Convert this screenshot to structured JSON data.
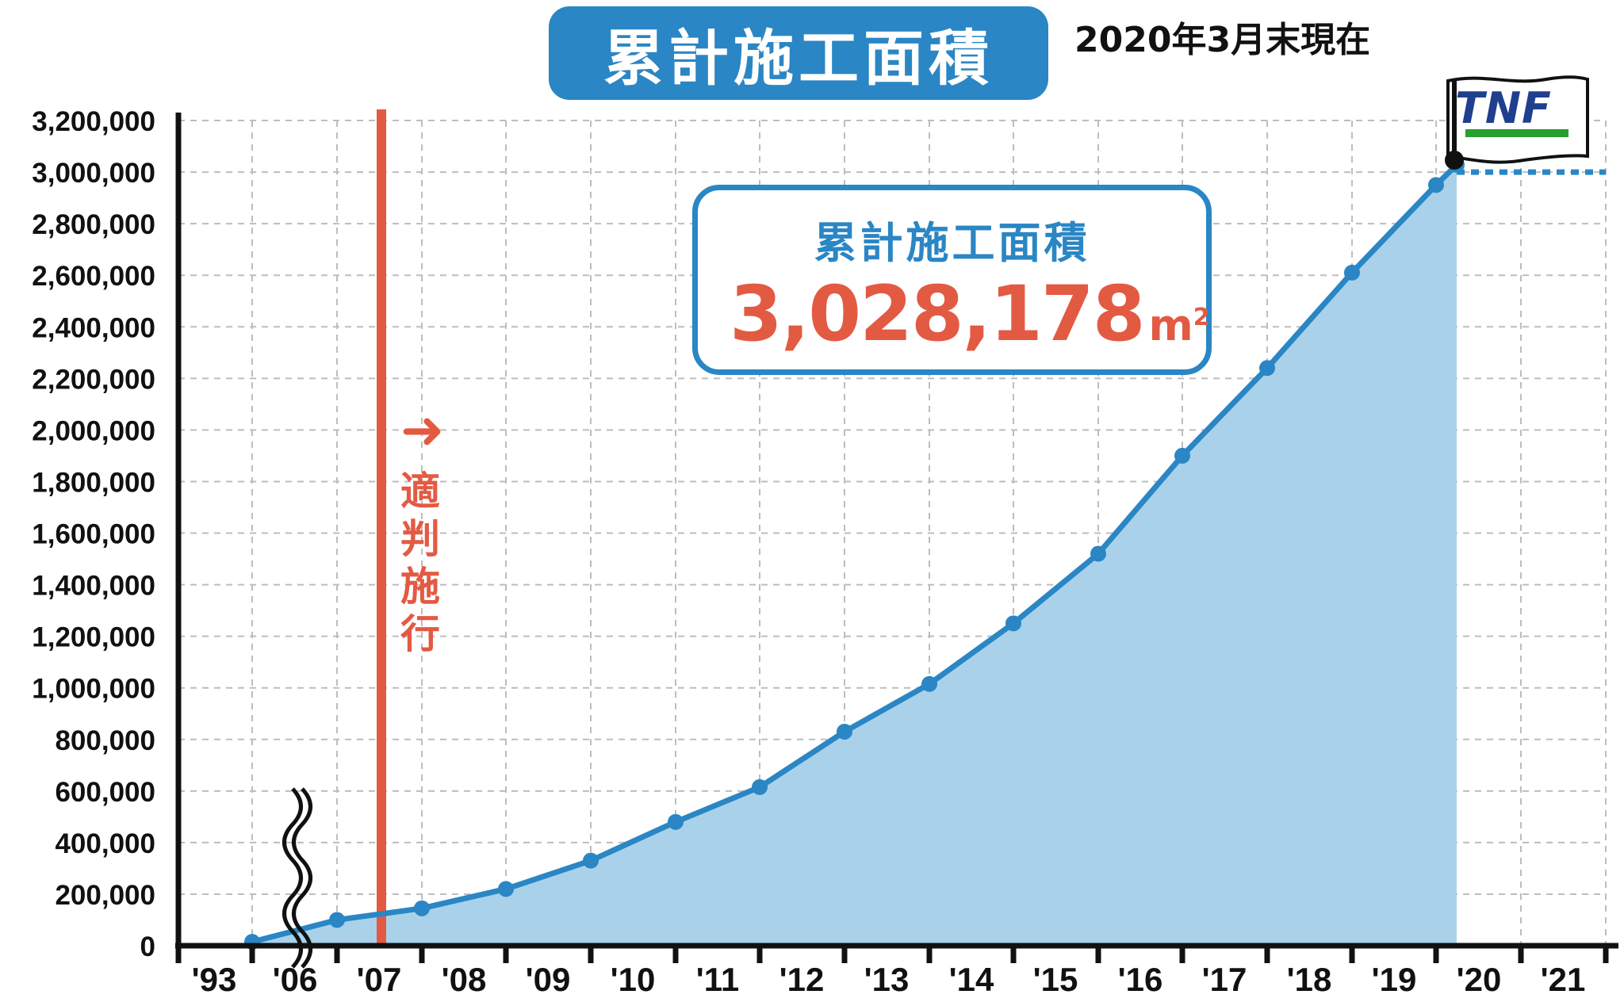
{
  "title": "累計施工面積",
  "as_of": "2020年3月末現在",
  "total_box": {
    "label": "累計施工面積",
    "value": "3,028,178",
    "unit": "m",
    "unit_sup": "2"
  },
  "law_marker": {
    "arrow": "➜",
    "text": "適判施行",
    "after_year": "'07"
  },
  "flag": {
    "text": "TNF"
  },
  "colors": {
    "blue": "#2a86c4",
    "fill": "#a9d2ea",
    "red": "#e35a43",
    "grid": "#bdbdbd",
    "green": "#27a02d",
    "navy": "#1f3f8f"
  },
  "chart_data": {
    "type": "area",
    "title": "累計施工面積",
    "xlabel": "",
    "ylabel": "",
    "ylim": [
      0,
      3200000
    ],
    "y_ticks": [
      0,
      200000,
      400000,
      600000,
      800000,
      1000000,
      1200000,
      1400000,
      1600000,
      1800000,
      2000000,
      2200000,
      2400000,
      2600000,
      2800000,
      3000000,
      3200000
    ],
    "y_tick_labels": [
      "0",
      "200,000",
      "400,000",
      "600,000",
      "800,000",
      "1,000,000",
      "1,200,000",
      "1,400,000",
      "1,600,000",
      "1,800,000",
      "2,000,000",
      "2,200,000",
      "2,400,000",
      "2,600,000",
      "2,800,000",
      "3,000,000",
      "3,200,000"
    ],
    "x_tick_labels": [
      "'93",
      "'06",
      "'07",
      "'08",
      "'09",
      "'10",
      "'11",
      "'12",
      "'13",
      "'14",
      "'15",
      "'16",
      "'17",
      "'18",
      "'19",
      "'20",
      "'21"
    ],
    "axis_break_after": "'93",
    "grid": true,
    "series": [
      {
        "values": [
          {
            "x": "'93",
            "y": 15000
          },
          {
            "x": "'06",
            "y": 100000
          },
          {
            "x": "'07",
            "y": 145000
          },
          {
            "x": "'08",
            "y": 220000
          },
          {
            "x": "'09",
            "y": 330000
          },
          {
            "x": "'10",
            "y": 480000
          },
          {
            "x": "'11",
            "y": 615000
          },
          {
            "x": "'12",
            "y": 830000
          },
          {
            "x": "'13",
            "y": 1015000
          },
          {
            "x": "'14",
            "y": 1250000
          },
          {
            "x": "'15",
            "y": 1520000
          },
          {
            "x": "'16",
            "y": 1900000
          },
          {
            "x": "'17",
            "y": 2240000
          },
          {
            "x": "'18",
            "y": 2610000
          },
          {
            "x": "'19",
            "y": 2950000
          },
          {
            "x": "'20",
            "y": 3028178
          }
        ]
      }
    ],
    "projection": {
      "from": "'20",
      "to": "'21",
      "y": 3000000,
      "style": "dotted"
    }
  }
}
